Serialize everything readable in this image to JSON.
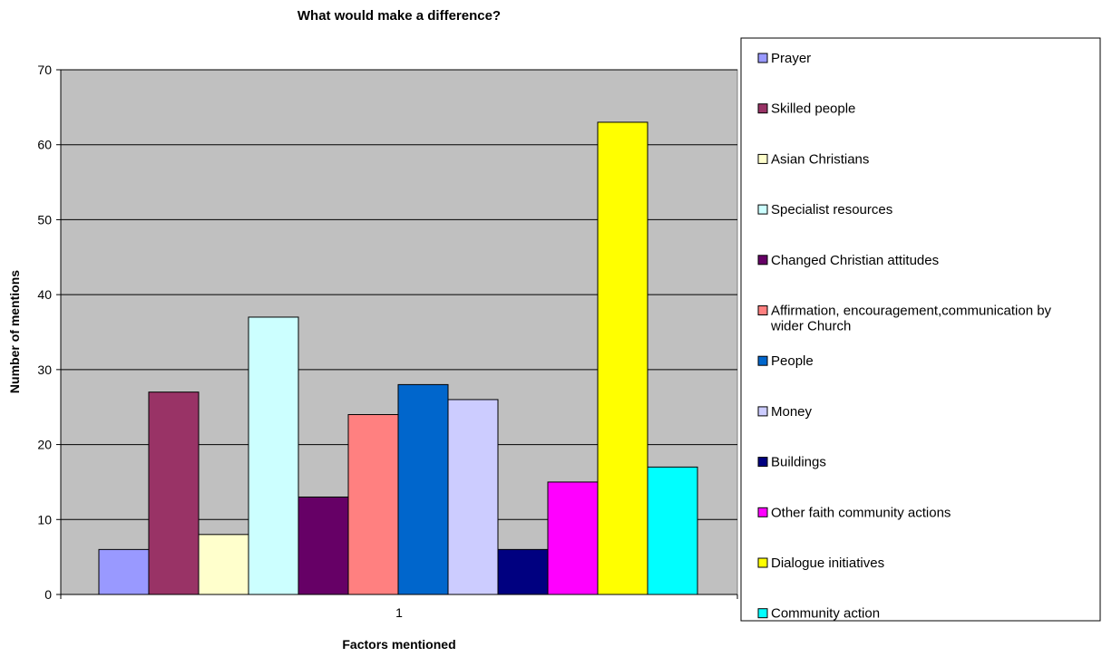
{
  "chart_data": {
    "type": "bar",
    "title": "What would make a difference?",
    "xlabel": "Factors mentioned",
    "ylabel": "Number of mentions",
    "categories": [
      "1"
    ],
    "ylim": [
      0,
      70
    ],
    "yticks": [
      0,
      10,
      20,
      30,
      40,
      50,
      60,
      70
    ],
    "grid": true,
    "legend_position": "right",
    "plot_background": "#c0c0c0",
    "series": [
      {
        "name": "Prayer",
        "values": [
          6
        ],
        "color": "#9999ff"
      },
      {
        "name": "Skilled people",
        "values": [
          27
        ],
        "color": "#993366"
      },
      {
        "name": "Asian Christians",
        "values": [
          8
        ],
        "color": "#ffffcc"
      },
      {
        "name": "Specialist resources",
        "values": [
          37
        ],
        "color": "#ccffff"
      },
      {
        "name": "Changed Christian attitudes",
        "values": [
          13
        ],
        "color": "#660066"
      },
      {
        "name": "Affirmation, encouragement,communication by wider Church",
        "values": [
          24
        ],
        "color": "#ff8080"
      },
      {
        "name": "People",
        "values": [
          28
        ],
        "color": "#0066cc"
      },
      {
        "name": "Money",
        "values": [
          26
        ],
        "color": "#ccccff"
      },
      {
        "name": "Buildings",
        "values": [
          6
        ],
        "color": "#000080"
      },
      {
        "name": "Other faith community actions",
        "values": [
          15
        ],
        "color": "#ff00ff"
      },
      {
        "name": "Dialogue initiatives",
        "values": [
          63
        ],
        "color": "#ffff00"
      },
      {
        "name": "Community action",
        "values": [
          17
        ],
        "color": "#00ffff"
      }
    ]
  }
}
